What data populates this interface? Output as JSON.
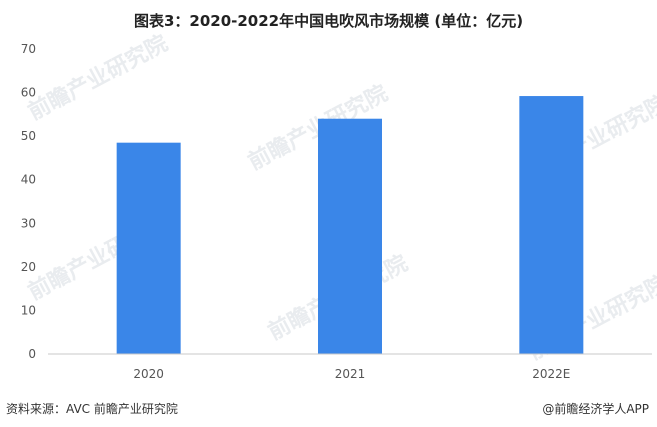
{
  "title": "图表3：2020-2022年中国电吹风市场规模 (单位：亿元)",
  "source": "资料来源：AVC 前瞻产业研究院",
  "brand": "@前瞻经济学人APP",
  "watermark": "前瞻产业研究院",
  "colors": {
    "bar": "#3a86e8",
    "axis": "#c8c8c8",
    "text": "#555555"
  },
  "chart_data": {
    "type": "bar",
    "categories": [
      "2020",
      "2021",
      "2022E"
    ],
    "values": [
      48.5,
      54,
      59.2
    ],
    "ylim": [
      0,
      70
    ],
    "yticks": [
      0,
      10,
      20,
      30,
      40,
      50,
      60,
      70
    ],
    "grid": false,
    "title": "图表3：2020-2022年中国电吹风市场规模 (单位：亿元)"
  }
}
